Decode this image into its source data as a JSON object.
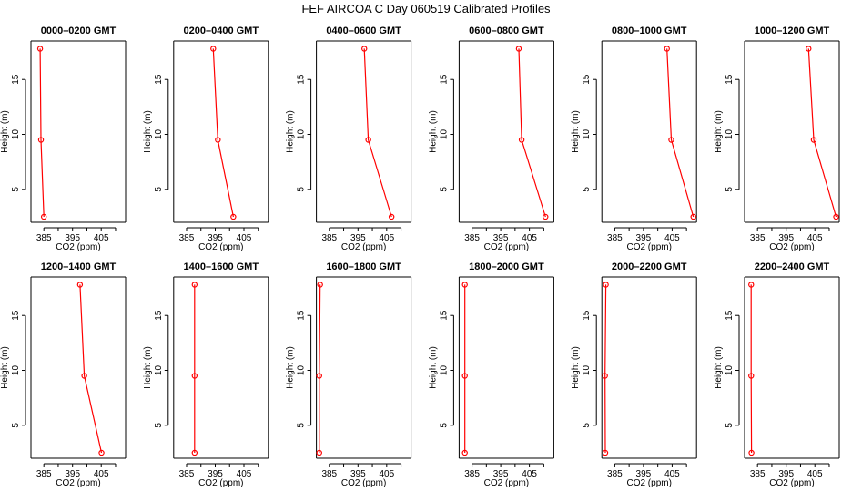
{
  "title": "FEF AIRCOA C  Day 060519  Calibrated Profiles",
  "chart_data": {
    "type": "line",
    "xlabel": "CO2 (ppm)",
    "ylabel": "Height (m)",
    "xlim": [
      380.5,
      413.5
    ],
    "ylim": [
      2.0,
      18.5
    ],
    "xticks": [
      385,
      395,
      405
    ],
    "xtick_labels": [
      "385",
      "395",
      "405"
    ],
    "yticks": [
      5,
      10,
      15
    ],
    "ytick_labels": [
      "5",
      "10",
      "15"
    ],
    "series_color": "#ff0000",
    "heights": [
      2.5,
      9.5,
      17.8
    ],
    "panels": [
      {
        "title": "0000–0200 GMT",
        "co2": [
          385.0,
          384.0,
          383.7
        ]
      },
      {
        "title": "0200–0400 GMT",
        "co2": [
          401.3,
          395.9,
          394.3
        ]
      },
      {
        "title": "0400–0600 GMT",
        "co2": [
          406.7,
          398.6,
          397.2
        ]
      },
      {
        "title": "0600–0800 GMT",
        "co2": [
          410.6,
          402.3,
          401.3
        ]
      },
      {
        "title": "0800–1000 GMT",
        "co2": [
          412.4,
          404.7,
          403.2
        ]
      },
      {
        "title": "1000–1200 GMT",
        "co2": [
          412.4,
          404.6,
          402.8
        ]
      },
      {
        "title": "1200–1400 GMT",
        "co2": [
          405.1,
          399.1,
          397.6
        ]
      },
      {
        "title": "1400–1600 GMT",
        "co2": [
          387.8,
          387.8,
          387.8
        ]
      },
      {
        "title": "1600–1800 GMT",
        "co2": [
          381.5,
          381.5,
          381.8
        ]
      },
      {
        "title": "1800–2000 GMT",
        "co2": [
          382.5,
          382.5,
          382.5
        ]
      },
      {
        "title": "2000–2200 GMT",
        "co2": [
          381.7,
          381.6,
          381.9
        ]
      },
      {
        "title": "2200–2400 GMT",
        "co2": [
          382.9,
          382.8,
          382.8
        ]
      }
    ]
  }
}
